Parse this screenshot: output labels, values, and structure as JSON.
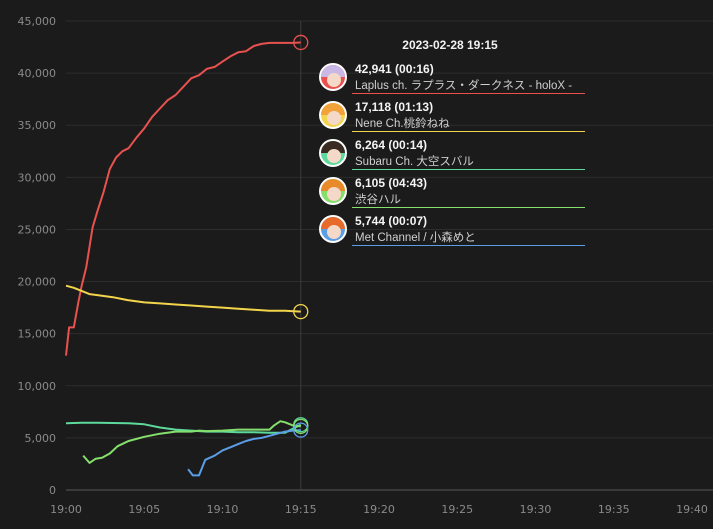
{
  "chart_data": {
    "type": "line",
    "xlabel": "",
    "ylabel": "",
    "ylim": [
      0,
      45000
    ],
    "y_ticks": [
      "0",
      "5,000",
      "10,000",
      "15,000",
      "20,000",
      "25,000",
      "30,000",
      "35,000",
      "40,000",
      "45,000"
    ],
    "x_ticks": [
      "19:00",
      "19:05",
      "19:10",
      "19:15",
      "19:20",
      "19:25",
      "19:30",
      "19:35",
      "19:40"
    ],
    "xlim_minutes_after_1900": [
      0,
      40
    ],
    "grid": true,
    "series": [
      {
        "name": "Laplus ch. ラプラス・ダークネス - holoX -",
        "color": "#e8524e",
        "x": [
          0,
          0.2,
          0.5,
          0.8,
          1.0,
          1.3,
          1.7,
          2.0,
          2.4,
          2.8,
          3.2,
          3.6,
          4.0,
          4.5,
          5.0,
          5.5,
          6.0,
          6.5,
          7.0,
          7.5,
          8.0,
          8.5,
          9.0,
          9.5,
          10.0,
          10.5,
          11.0,
          11.5,
          12.0,
          12.5,
          13.0,
          13.5,
          14.0,
          14.5,
          15.0
        ],
        "y": [
          12900,
          15600,
          15600,
          18100,
          19600,
          21400,
          25200,
          26700,
          28600,
          30800,
          31900,
          32500,
          32800,
          33800,
          34700,
          35800,
          36600,
          37400,
          37900,
          38700,
          39500,
          39800,
          40400,
          40600,
          41100,
          41600,
          42000,
          42100,
          42600,
          42800,
          42900,
          42900,
          42900,
          42900,
          42941
        ]
      },
      {
        "name": "Nene Ch.桃鈴ねね",
        "color": "#f2d54c",
        "x": [
          0,
          0.5,
          1.0,
          1.5,
          2.0,
          3.0,
          4.0,
          5.0,
          6.0,
          7.0,
          8.0,
          9.0,
          10.0,
          11.0,
          12.0,
          13.0,
          14.0,
          15.0
        ],
        "y": [
          19600,
          19400,
          19100,
          18800,
          18700,
          18500,
          18200,
          18000,
          17900,
          17800,
          17700,
          17600,
          17500,
          17400,
          17300,
          17200,
          17200,
          17118
        ]
      },
      {
        "name": "Subaru Ch. 大空スバル",
        "color": "#5dd99b",
        "x": [
          0,
          1,
          2,
          3,
          4,
          5,
          6,
          7,
          8,
          9,
          10,
          11,
          12,
          13,
          14,
          15
        ],
        "y": [
          6400,
          6450,
          6450,
          6430,
          6400,
          6300,
          6000,
          5800,
          5700,
          5600,
          5600,
          5550,
          5550,
          5500,
          5500,
          6264
        ]
      },
      {
        "name": "渋谷ハル",
        "color": "#86df6d",
        "x": [
          1.1,
          1.5,
          1.9,
          2.3,
          2.8,
          3.3,
          4.0,
          5.0,
          6.0,
          7.0,
          8.0,
          8.5,
          9.0,
          10.0,
          11.0,
          12.0,
          13.0,
          13.3,
          13.7,
          14.0,
          14.5,
          15.0
        ],
        "y": [
          3300,
          2600,
          3000,
          3100,
          3500,
          4200,
          4700,
          5100,
          5400,
          5600,
          5600,
          5700,
          5650,
          5700,
          5800,
          5800,
          5800,
          6200,
          6600,
          6500,
          6200,
          6105
        ]
      },
      {
        "name": "Met Channel / 小森めと",
        "color": "#5c9ee6",
        "x": [
          7.8,
          8.1,
          8.5,
          8.9,
          9.5,
          10.0,
          10.5,
          11.0,
          11.5,
          12.0,
          12.5,
          13.0,
          13.5,
          14.0,
          14.5,
          15.0
        ],
        "y": [
          2000,
          1400,
          1400,
          2900,
          3300,
          3800,
          4100,
          4400,
          4700,
          4900,
          5000,
          5200,
          5400,
          5600,
          5700,
          5744
        ]
      }
    ]
  },
  "tooltip": {
    "time": "2023-02-28 19:15",
    "rows": [
      {
        "value": "42,941 (00:16)",
        "name": "Laplus ch. ラプラス・ダークネス - holoX -",
        "color": "#e8524e",
        "hair": "#c9b8e6"
      },
      {
        "value": "17,118 (01:13)",
        "name": "Nene Ch.桃鈴ねね",
        "color": "#f2d54c",
        "hair": "#f2a23a"
      },
      {
        "value": "6,264 (00:14)",
        "name": "Subaru Ch. 大空スバル",
        "color": "#5dd99b",
        "hair": "#3a2a22"
      },
      {
        "value": "6,105 (04:43)",
        "name": "渋谷ハル",
        "color": "#86df6d",
        "hair": "#e88a2a"
      },
      {
        "value": "5,744 (00:07)",
        "name": "Met Channel / 小森めと",
        "color": "#5c9ee6",
        "hair": "#e76a2a"
      }
    ]
  }
}
